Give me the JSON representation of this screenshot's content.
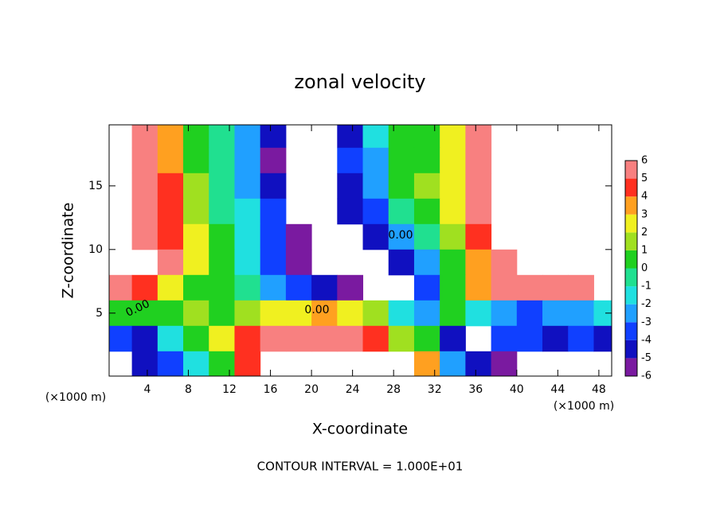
{
  "chart_data": {
    "type": "contour",
    "title": "zonal velocity",
    "xlabel": "X-coordinate",
    "ylabel": "Z-coordinate",
    "xunit": "(×1000 m)",
    "yunit": "(×1000 m)",
    "footnote": "CONTOUR INTERVAL = 1.000E+01",
    "contour_labels": [
      "0.00",
      "0.00",
      "0.00"
    ],
    "xlim": [
      0.28,
      49.25
    ],
    "ylim": [
      0.05,
      19.8
    ],
    "xticks": [
      4,
      8,
      12,
      16,
      20,
      24,
      28,
      32,
      36,
      40,
      44,
      48
    ],
    "yticks": [
      5,
      10,
      15
    ],
    "x": [
      1.25,
      3.75,
      6.25,
      8.75,
      11.25,
      13.75,
      16.25,
      18.75,
      21.25,
      23.75,
      26.25,
      28.75,
      31.25,
      33.75,
      36.25,
      38.75,
      41.25,
      43.75,
      46.25,
      48.75
    ],
    "y": [
      19,
      17,
      15,
      13,
      11,
      9,
      7,
      5,
      3,
      1
    ],
    "z": [
      [
        null,
        6,
        3,
        0,
        -1,
        -3,
        -5,
        null,
        null,
        -5,
        -2,
        0,
        0,
        2,
        5,
        null,
        null,
        null,
        null,
        null
      ],
      [
        null,
        6,
        3,
        0,
        -1,
        -3,
        -6,
        null,
        null,
        -4,
        -3,
        0,
        0,
        2,
        5,
        null,
        null,
        null,
        null,
        null
      ],
      [
        null,
        6,
        4,
        1,
        -1,
        -3,
        -5,
        null,
        null,
        -5,
        -3,
        0,
        1,
        2,
        5,
        null,
        null,
        null,
        null,
        null
      ],
      [
        null,
        6,
        4,
        1,
        -1,
        -2,
        -4,
        null,
        null,
        -5,
        -4,
        -1,
        0,
        2,
        5,
        null,
        null,
        null,
        null,
        null
      ],
      [
        null,
        6,
        4,
        2,
        0,
        -2,
        -4,
        -6,
        null,
        null,
        -5,
        -3,
        -1,
        1,
        4,
        null,
        null,
        null,
        null,
        null
      ],
      [
        null,
        null,
        5,
        2,
        0,
        -2,
        -4,
        -6,
        null,
        null,
        null,
        -5,
        -3,
        0,
        3,
        6,
        null,
        null,
        null,
        null
      ],
      [
        6,
        4,
        2,
        0,
        0,
        -1,
        -3,
        -4,
        -5,
        -6,
        null,
        null,
        -4,
        0,
        3,
        5,
        5,
        6,
        6,
        null
      ],
      [
        0,
        0,
        0,
        1,
        0,
        1,
        2,
        2,
        3,
        2,
        1,
        -2,
        -3,
        0,
        -2,
        -3,
        -4,
        -3,
        -3,
        -2
      ],
      [
        -4,
        -5,
        -2,
        0,
        2,
        4,
        6,
        6,
        6,
        5,
        4,
        1,
        0,
        -5,
        null,
        -4,
        -4,
        -5,
        -4,
        -5
      ],
      [
        null,
        -5,
        -4,
        -2,
        0,
        4,
        null,
        null,
        null,
        null,
        null,
        null,
        3,
        -3,
        -5,
        -6,
        null,
        null,
        null,
        null
      ]
    ],
    "cbticks": [
      -6,
      -5,
      -4,
      -3,
      -2,
      -1,
      0,
      1,
      2,
      3,
      4,
      5,
      6
    ],
    "colors": [
      "#7a1aa0",
      "#1010c0",
      "#1040ff",
      "#20a0ff",
      "#20e0e0",
      "#20e090",
      "#20d020",
      "#a0e020",
      "#f0f020",
      "#ffa020",
      "#ff3020",
      "#f88080"
    ]
  }
}
